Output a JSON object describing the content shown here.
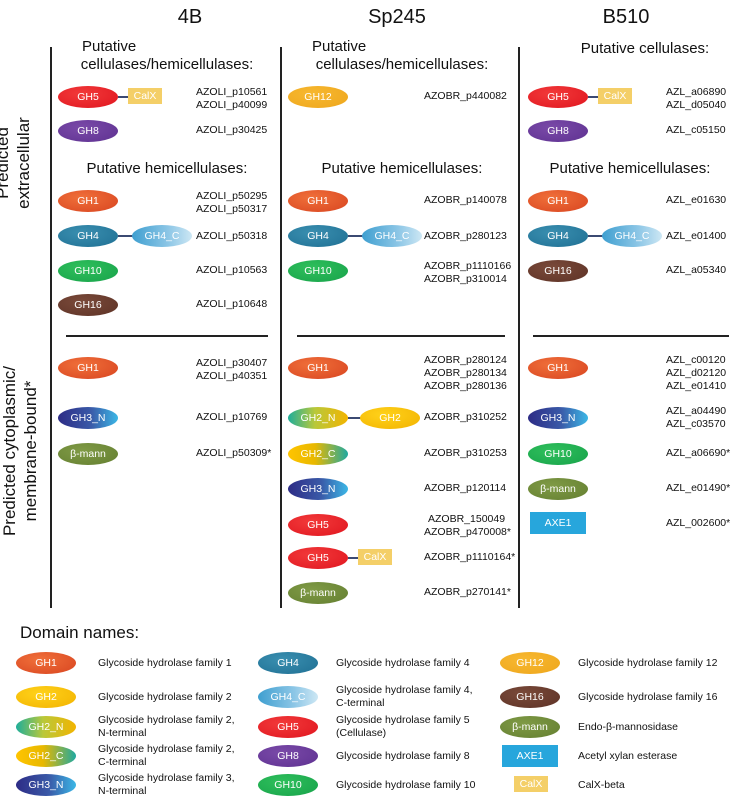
{
  "columns": [
    "4B",
    "Sp245",
    "B510"
  ],
  "side_labels": {
    "extracellular": "Predicted extracellular",
    "cytoplasmic_1": "Predicted cytoplasmic/",
    "cytoplasmic_2": "membrane-bound*"
  },
  "sections": {
    "cell_hemi_1": "Putative",
    "cell_hemi_2": "cellulases/hemicellulases:",
    "cellulases": "Putative cellulases:",
    "hemicellulases": "Putative hemicellulases:"
  },
  "domains": {
    "GH1": "GH1",
    "GH2": "GH2",
    "GH2_N": "GH2_N",
    "GH2_C": "GH2_C",
    "GH3_N": "GH3_N",
    "GH4": "GH4",
    "GH4_C": "GH4_C",
    "GH5": "GH5",
    "GH8": "GH8",
    "GH10": "GH10",
    "GH12": "GH12",
    "GH16": "GH16",
    "bmann": "β-mann",
    "AXE1": "AXE1",
    "CalX": "CalX"
  },
  "col4B": {
    "ext_gh5": [
      "AZOLI_p10561",
      "AZOLI_p40099"
    ],
    "ext_gh8": [
      "AZOLI_p30425"
    ],
    "hemi_gh1": [
      "AZOLI_p50295",
      "AZOLI_p50317"
    ],
    "hemi_gh4": [
      "AZOLI_p50318"
    ],
    "hemi_gh10": [
      "AZOLI_p10563"
    ],
    "hemi_gh16": [
      "AZOLI_p10648"
    ],
    "cyt_gh1": [
      "AZOLI_p30407",
      "AZOLI_p40351"
    ],
    "cyt_gh3n": [
      "AZOLI_p10769"
    ],
    "cyt_bmann": [
      "AZOLI_p50309*"
    ]
  },
  "colSp245": {
    "ext_gh12": [
      "AZOBR_p440082"
    ],
    "hemi_gh1": [
      "AZOBR_p140078"
    ],
    "hemi_gh4": [
      "AZOBR_p280123"
    ],
    "hemi_gh10": [
      "AZOBR_p1110166",
      "AZOBR_p310014"
    ],
    "cyt_gh1": [
      "AZOBR_p280124",
      "AZOBR_p280134",
      "AZOBR_p280136"
    ],
    "cyt_gh2": [
      "AZOBR_p310252"
    ],
    "cyt_gh2c": [
      "AZOBR_p310253"
    ],
    "cyt_gh3n": [
      "AZOBR_p120114"
    ],
    "cyt_gh5": [
      "AZOBR_150049",
      "AZOBR_p470008*"
    ],
    "cyt_gh5calx": [
      "AZOBR_p1110164*"
    ],
    "cyt_bmann": [
      "AZOBR_p270141*"
    ]
  },
  "colB510": {
    "ext_gh5": [
      "AZL_a06890",
      "AZL_d05040"
    ],
    "ext_gh8": [
      "AZL_c05150"
    ],
    "hemi_gh1": [
      "AZL_e01630"
    ],
    "hemi_gh4": [
      "AZL_e01400"
    ],
    "hemi_gh16": [
      "AZL_a05340"
    ],
    "cyt_gh1": [
      "AZL_c00120",
      "AZL_d02120",
      "AZL_e01410"
    ],
    "cyt_gh3n": [
      "AZL_a04490",
      "AZL_c03570"
    ],
    "cyt_gh10": [
      "AZL_a06690*"
    ],
    "cyt_bmann": [
      "AZL_e01490*"
    ],
    "cyt_axe1": [
      "AZL_002600*"
    ]
  },
  "legend": {
    "title": "Domain names:",
    "GH1": "Glycoside hydrolase family 1",
    "GH2": "Glycoside hydrolase family 2",
    "GH2_N_1": "Glycoside hydrolase family 2,",
    "GH2_N_2": "N-terminal",
    "GH2_C_1": "Glycoside hydrolase family 2,",
    "GH2_C_2": "C-terminal",
    "GH3_N_1": "Glycoside hydrolase family 3,",
    "GH3_N_2": "N-terminal",
    "GH4": "Glycoside hydrolase family 4",
    "GH4_C_1": "Glycoside hydrolase family 4,",
    "GH4_C_2": "C-terminal",
    "GH5_1": "Glycoside hydrolase family 5",
    "GH5_2": "(Cellulase)",
    "GH8": "Glycoside hydrolase family 8",
    "GH10": "Glycoside hydrolase family 10",
    "GH12": "Glycoside hydrolase family 12",
    "GH16": "Glycoside hydrolase family 16",
    "bmann": "Endo-β-mannosidase",
    "AXE1": "Acetyl xylan esterase",
    "CalX": "CalX-beta"
  }
}
